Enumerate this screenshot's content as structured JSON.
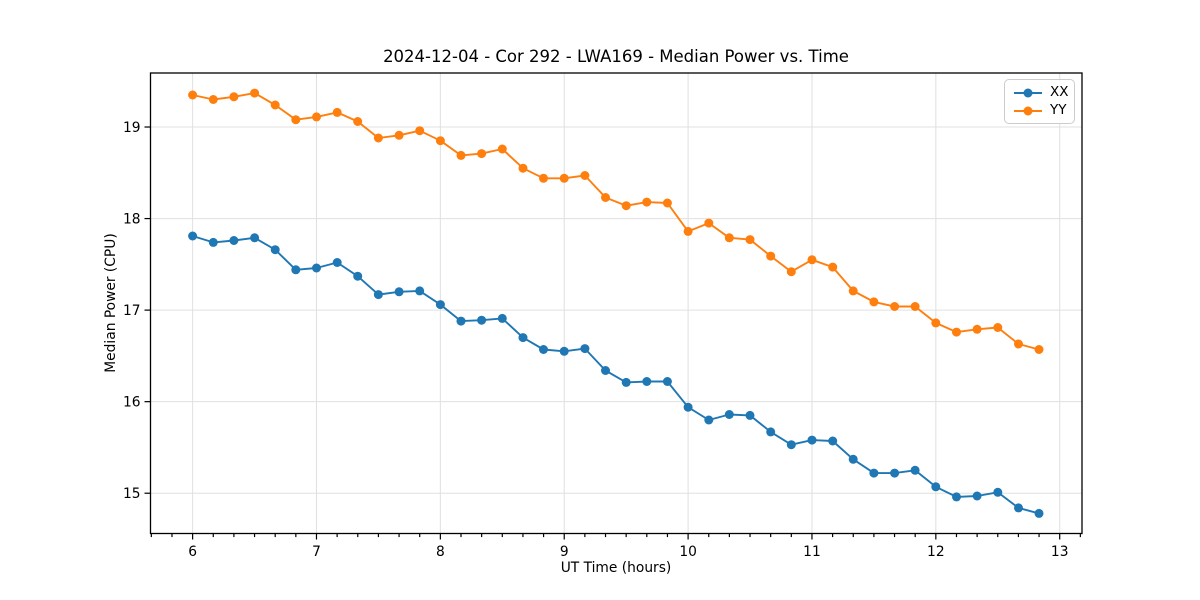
{
  "chart_data": {
    "type": "line",
    "title": "2024-12-04 - Cor 292 - LWA169 - Median Power vs. Time",
    "xlabel": "UT Time (hours)",
    "ylabel": "Median Power (CPU)",
    "legend": {
      "position": "upper right",
      "entries": [
        "XX",
        "YY"
      ]
    },
    "x": [
      6.0,
      6.167,
      6.333,
      6.5,
      6.667,
      6.833,
      7.0,
      7.167,
      7.333,
      7.5,
      7.667,
      7.833,
      8.0,
      8.167,
      8.333,
      8.5,
      8.667,
      8.833,
      9.0,
      9.167,
      9.333,
      9.5,
      9.667,
      9.833,
      10.0,
      10.167,
      10.333,
      10.5,
      10.667,
      10.833,
      11.0,
      11.167,
      11.333,
      11.5,
      11.667,
      11.833,
      12.0,
      12.167,
      12.333,
      12.5,
      12.667,
      12.833
    ],
    "series": [
      {
        "name": "XX",
        "color": "#1f77b4",
        "marker": "o",
        "values": [
          17.81,
          17.74,
          17.76,
          17.79,
          17.66,
          17.44,
          17.46,
          17.52,
          17.37,
          17.17,
          17.2,
          17.21,
          17.06,
          16.88,
          16.89,
          16.91,
          16.7,
          16.57,
          16.55,
          16.58,
          16.34,
          16.21,
          16.22,
          16.22,
          15.94,
          15.8,
          15.86,
          15.85,
          15.67,
          15.53,
          15.58,
          15.57,
          15.37,
          15.22,
          15.22,
          15.25,
          15.07,
          14.96,
          14.97,
          15.01,
          14.84,
          14.78
        ]
      },
      {
        "name": "YY",
        "color": "#ff7f0e",
        "marker": "o",
        "values": [
          19.35,
          19.3,
          19.33,
          19.37,
          19.24,
          19.08,
          19.11,
          19.16,
          19.06,
          18.88,
          18.91,
          18.96,
          18.85,
          18.69,
          18.71,
          18.76,
          18.55,
          18.44,
          18.44,
          18.47,
          18.23,
          18.14,
          18.18,
          18.17,
          17.86,
          17.95,
          17.79,
          17.77,
          17.59,
          17.42,
          17.55,
          17.47,
          17.21,
          17.09,
          17.04,
          17.04,
          16.86,
          16.76,
          16.79,
          16.81,
          16.63,
          16.57
        ]
      }
    ],
    "xlim": [
      5.66,
      13.18
    ],
    "ylim": [
      14.56,
      19.59
    ],
    "x_ticks": [
      6,
      7,
      8,
      9,
      10,
      11,
      12,
      13
    ],
    "y_ticks": [
      15,
      16,
      17,
      18,
      19
    ],
    "x_minor_tick_step": 0.1667,
    "grid": true,
    "grid_color": "#e0e0e0",
    "background": "#ffffff",
    "spine_color": "#000000",
    "tick_color": "#000000"
  }
}
